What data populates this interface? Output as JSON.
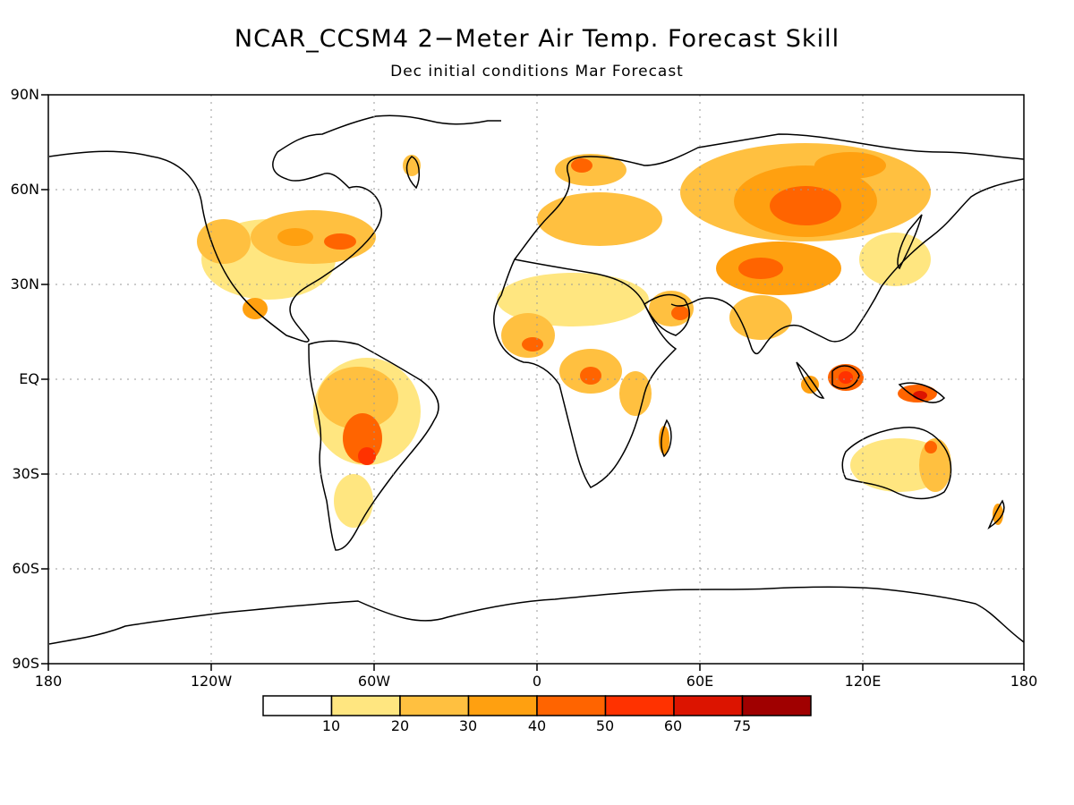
{
  "title": "NCAR_CCSM4 2−Meter Air Temp. Forecast Skill",
  "subtitle": "Dec initial conditions  Mar Forecast",
  "lat_labels": [
    "90N",
    "60N",
    "30N",
    "EQ",
    "30S",
    "60S",
    "90S"
  ],
  "lon_labels": [
    "180",
    "120W",
    "60W",
    "0",
    "60E",
    "120E",
    "180"
  ],
  "colorbar": {
    "labels": [
      "10",
      "20",
      "30",
      "40",
      "50",
      "60",
      "75"
    ],
    "colors": [
      "#ffffff",
      "#ffe680",
      "#ffc040",
      "#ffa010",
      "#ff6400",
      "#ff3200",
      "#dc1400",
      "#a00000"
    ]
  },
  "map_colors": {
    "coast": "#000000",
    "grid": "#999999",
    "frame": "#000000"
  }
}
